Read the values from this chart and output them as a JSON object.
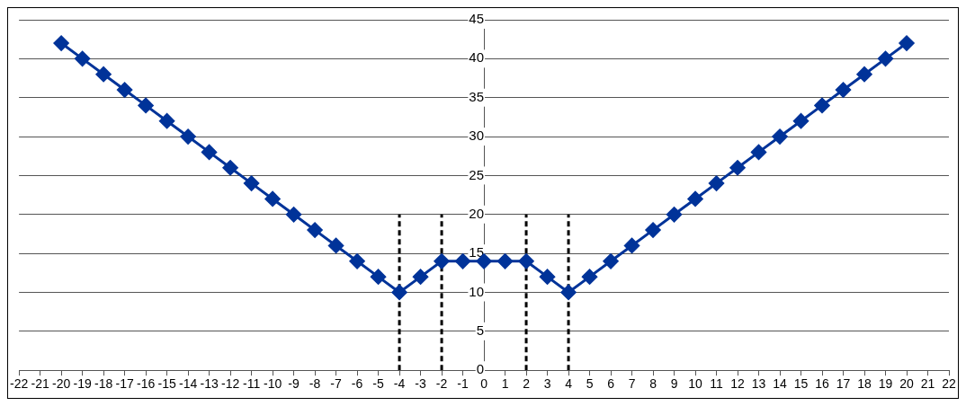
{
  "chart_data": {
    "type": "line",
    "xlim": [
      -22,
      22
    ],
    "xticks": [
      -22,
      -21,
      -20,
      -19,
      -18,
      -17,
      -16,
      -15,
      -14,
      -13,
      -12,
      -11,
      -10,
      -9,
      -8,
      -7,
      -6,
      -5,
      -4,
      -3,
      -2,
      -1,
      0,
      1,
      2,
      3,
      4,
      5,
      6,
      7,
      8,
      9,
      10,
      11,
      12,
      13,
      14,
      15,
      16,
      17,
      18,
      19,
      20,
      21,
      22
    ],
    "ylim": [
      0,
      45
    ],
    "yticks": [
      0,
      5,
      10,
      15,
      20,
      25,
      30,
      35,
      40,
      45
    ],
    "grid": "y",
    "legend": false,
    "series": [
      {
        "color": "#003399",
        "marker": "diamond",
        "line_style": "solid",
        "x": [
          -20,
          -19,
          -18,
          -17,
          -16,
          -15,
          -14,
          -13,
          -12,
          -11,
          -10,
          -9,
          -8,
          -7,
          -6,
          -5,
          -4,
          -3,
          -2,
          -1,
          0,
          1,
          2,
          3,
          4,
          5,
          6,
          7,
          8,
          9,
          10,
          11,
          12,
          13,
          14,
          15,
          16,
          17,
          18,
          19,
          20
        ],
        "values": [
          42,
          40,
          38,
          36,
          34,
          32,
          30,
          28,
          26,
          24,
          22,
          20,
          18,
          16,
          14,
          12,
          10,
          12,
          14,
          14,
          14,
          14,
          14,
          12,
          10,
          12,
          14,
          16,
          18,
          20,
          22,
          24,
          26,
          28,
          30,
          32,
          34,
          36,
          38,
          40,
          42
        ]
      },
      {
        "color": "#000000",
        "marker": "none",
        "line_style": "dashed",
        "x": [
          -4,
          -4
        ],
        "values": [
          0,
          20
        ]
      },
      {
        "color": "#000000",
        "marker": "none",
        "line_style": "dashed",
        "x": [
          -2,
          -2
        ],
        "values": [
          0,
          20
        ]
      },
      {
        "color": "#000000",
        "marker": "none",
        "line_style": "dashed",
        "x": [
          2,
          2
        ],
        "values": [
          0,
          20
        ]
      },
      {
        "color": "#000000",
        "marker": "none",
        "line_style": "dashed",
        "x": [
          4,
          4
        ],
        "values": [
          0,
          20
        ]
      }
    ]
  }
}
